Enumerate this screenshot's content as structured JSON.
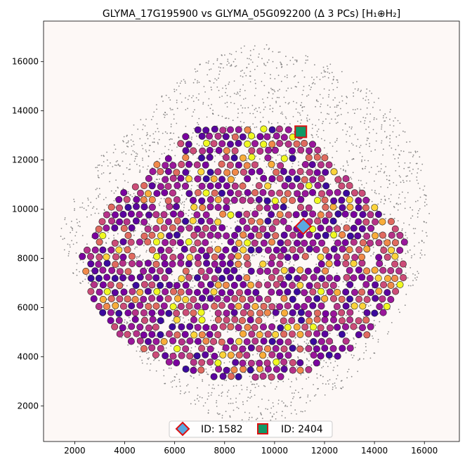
{
  "chart_data": {
    "type": "scatter",
    "title": "GLYMA_17G195900 vs GLYMA_05G092200 (Δ 3 PCs) [H₁⊕H₂]",
    "xlabel": "",
    "ylabel": "",
    "xlim": [
      750,
      17400
    ],
    "ylim": [
      550,
      17650
    ],
    "x_ticks": [
      2000,
      4000,
      6000,
      8000,
      10000,
      12000,
      14000,
      16000
    ],
    "y_ticks": [
      2000,
      4000,
      6000,
      8000,
      10000,
      12000,
      14000,
      16000
    ],
    "grid": false,
    "plot_background": "#fdf8f6",
    "colormap": "plasma",
    "background_point_color": "#666666",
    "tissue_outline": {
      "center": [
        9000,
        8800
      ],
      "radii_x": [
        7100,
        7600,
        7800,
        7900,
        7800,
        7400,
        6700,
        5600,
        6000,
        6600,
        7200,
        7500,
        7600,
        7300,
        7000,
        6900,
        6800,
        6800,
        7000,
        7200,
        7100,
        7000,
        6900,
        7000,
        7100
      ],
      "radii_y": [
        6000,
        7000,
        7300,
        7600,
        7800,
        8000,
        7900,
        7600,
        7200,
        6700,
        6000,
        5400,
        5000,
        5100,
        5600,
        6300,
        6900,
        7300,
        7600,
        7500,
        7200,
        6800,
        6400,
        6100,
        6000
      ]
    },
    "highlight_region": {
      "center": [
        8800,
        8200
      ],
      "radius_x": 6500,
      "radius_y": 5300
    },
    "highlights": [
      {
        "label": "ID: 1582",
        "x": 11150,
        "y": 9300,
        "marker": "diamond",
        "fill": "#5aa9e0",
        "edge": "#dd1111"
      },
      {
        "label": "ID: 2404",
        "x": 11050,
        "y": 13150,
        "marker": "square",
        "fill": "#119966",
        "edge": "#dd1111"
      }
    ],
    "legend": {
      "position": "bottom-center",
      "entries": [
        "ID: 1582",
        "ID: 2404"
      ]
    }
  }
}
